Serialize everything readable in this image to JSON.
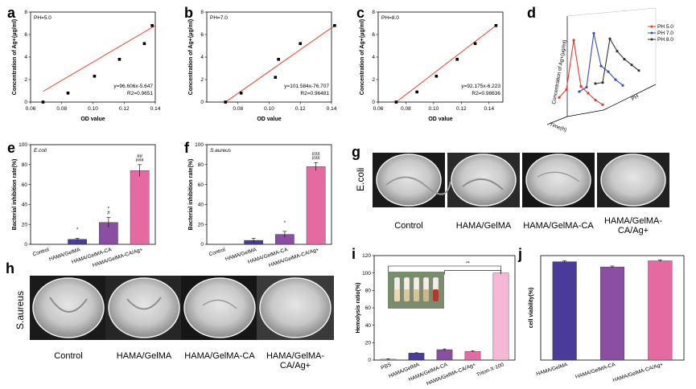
{
  "panel_letters": {
    "a": "a",
    "b": "b",
    "c": "c",
    "d": "d",
    "e": "e",
    "f": "f",
    "g": "g",
    "h": "h",
    "i": "i",
    "j": "j"
  },
  "colors": {
    "fit": "#e8523a",
    "bar_purple": "#4a3a9a",
    "bar_violet": "#8a4fa2",
    "bar_pink": "#e66aa2",
    "bar_lightpink": "#f6b8d4",
    "bar_peach": "#f1a87a",
    "red": "#e23b2e",
    "blue": "#3b4db5",
    "grey": "#333333"
  },
  "chart_data": [
    {
      "id": "a",
      "type": "scatter",
      "title": "PH=5.0",
      "xlabel": "OD value",
      "ylabel": "Concentration of Ag+(μg/ml)",
      "xlim": [
        0.06,
        0.14
      ],
      "ylim": [
        0,
        8
      ],
      "xticks": [
        "0.06",
        "0.08",
        "0.10",
        "0.12",
        "0.14"
      ],
      "yticks": [
        "0",
        "2",
        "4",
        "6",
        "8"
      ],
      "x": [
        0.068,
        0.084,
        0.101,
        0.117,
        0.133,
        0.138
      ],
      "y": [
        0.0,
        0.8,
        2.3,
        3.8,
        5.2,
        6.8
      ],
      "fit": {
        "x": [
          0.068,
          0.14
        ],
        "y": [
          0.95,
          6.8
        ]
      },
      "equation": "y=96.606x-5.647",
      "r2": "R2=0.9651"
    },
    {
      "id": "b",
      "type": "scatter",
      "title": "PH=7.0",
      "xlabel": "OD value",
      "ylabel": "Concentration of Ag+(μg/ml)",
      "xlim": [
        0.06,
        0.14
      ],
      "ylim": [
        0,
        8
      ],
      "xticks": [
        "0.08",
        "0.10",
        "0.12",
        "0.14"
      ],
      "yticks": [
        "0",
        "2",
        "4",
        "6",
        "8"
      ],
      "x": [
        0.072,
        0.082,
        0.104,
        0.106,
        0.12,
        0.142
      ],
      "y": [
        0.0,
        0.8,
        2.2,
        3.8,
        5.2,
        6.8
      ],
      "fit": {
        "x": [
          0.072,
          0.142
        ],
        "y": [
          0.0,
          6.8
        ]
      },
      "equation": "y=101.584x-76.707",
      "r2": "R2=0.96481"
    },
    {
      "id": "c",
      "type": "scatter",
      "title": "PH=8.0",
      "xlabel": "OD value",
      "ylabel": "Concentration of Ag+(μg/ml)",
      "xlim": [
        0.06,
        0.15
      ],
      "ylim": [
        0,
        8
      ],
      "xticks": [
        "0.06",
        "0.08",
        "0.10",
        "0.12",
        "0.14"
      ],
      "yticks": [
        "0",
        "2",
        "4",
        "6",
        "8"
      ],
      "x": [
        0.073,
        0.088,
        0.102,
        0.117,
        0.13,
        0.145
      ],
      "y": [
        0.0,
        0.9,
        2.3,
        3.8,
        5.2,
        6.8
      ],
      "fit": {
        "x": [
          0.073,
          0.145
        ],
        "y": [
          0.0,
          6.8
        ]
      },
      "equation": "y=92.175x-6.223",
      "r2": "R2=0.98636"
    },
    {
      "id": "d",
      "type": "line",
      "title": "",
      "ylabel": "Concentration of Ag+(μg/ml)",
      "xlabel": "Time(h)",
      "zlabel": "PH",
      "series": [
        {
          "name": "PH 5.0",
          "values": [
            1.2,
            2.0,
            6.5,
            2.5,
            2.0,
            1.5,
            1.2
          ]
        },
        {
          "name": "PH 7.0",
          "values": [
            1.0,
            1.5,
            6.4,
            3.6,
            3.2,
            2.6,
            2.2
          ]
        },
        {
          "name": "PH 8.0",
          "values": [
            1.0,
            1.2,
            5.2,
            4.2,
            3.6,
            3.2,
            2.8
          ]
        }
      ]
    },
    {
      "id": "e",
      "type": "bar",
      "title": "E.coli",
      "ylabel": "Bacterial inhibition rate(%)",
      "ylim": [
        0,
        100
      ],
      "yticks": [
        "0",
        "20",
        "40",
        "60",
        "80",
        "100"
      ],
      "categories": [
        "Control",
        "HAMA/GelMA",
        "HAMA/GelMA-CA",
        "HAMA/GelMA-CA/Ag+"
      ],
      "values": [
        0,
        5,
        22,
        74
      ],
      "errors": [
        0,
        1,
        5,
        6
      ],
      "annotations": [
        "",
        "*",
        "*\n#",
        "##\n###"
      ]
    },
    {
      "id": "f",
      "type": "bar",
      "title": "S.aureus",
      "ylabel": "Bacterial inhibition rate(%)",
      "ylim": [
        0,
        100
      ],
      "yticks": [
        "0",
        "20",
        "40",
        "60",
        "80",
        "100"
      ],
      "categories": [
        "Control",
        "HAMA/GelMA",
        "HAMA/GelMA-CA",
        "HAMA/GelMA-CA/Ag+"
      ],
      "values": [
        0,
        4,
        10,
        78
      ],
      "errors": [
        0,
        2,
        3,
        4
      ],
      "annotations": [
        "",
        "",
        "*",
        "###\n###"
      ]
    },
    {
      "id": "i",
      "type": "bar",
      "title": "",
      "ylabel": "Hemolysis ratio(%)",
      "ylim": [
        0,
        120
      ],
      "yticks": [
        "0",
        "20",
        "40",
        "60",
        "80",
        "100",
        "120"
      ],
      "categories": [
        "PBS",
        "HAMA/GelMA",
        "HAMA/GelMA-CA",
        "HAMA/GelMA-CA/Ag+",
        "Triton-X-100"
      ],
      "values": [
        1,
        8,
        12,
        10,
        100
      ],
      "errors": [
        0.5,
        0.5,
        0.8,
        0.6,
        0
      ],
      "significance": "**"
    },
    {
      "id": "j",
      "type": "bar",
      "title": "",
      "ylabel": "cell viability(%)",
      "ylim": [
        0,
        120
      ],
      "categories": [
        "HAMA/GelMA",
        "HAMA/GelMA-CA",
        "HAMA/GelMA-CA/Ag+"
      ],
      "values": [
        113,
        107,
        114
      ],
      "errors": [
        1,
        1,
        1
      ]
    }
  ],
  "photos": {
    "g": {
      "row_label": "E.coli",
      "captions": [
        "Control",
        "HAMA/GelMA",
        "HAMA/GelMA-CA",
        "HAMA/GelMA-\nCA/Ag+"
      ]
    },
    "h": {
      "row_label": "S.aureus",
      "captions": [
        "Control",
        "HAMA/GelMA",
        "HAMA/GelMA-CA",
        "HAMA/GelMA-\nCA/Ag+"
      ]
    }
  }
}
